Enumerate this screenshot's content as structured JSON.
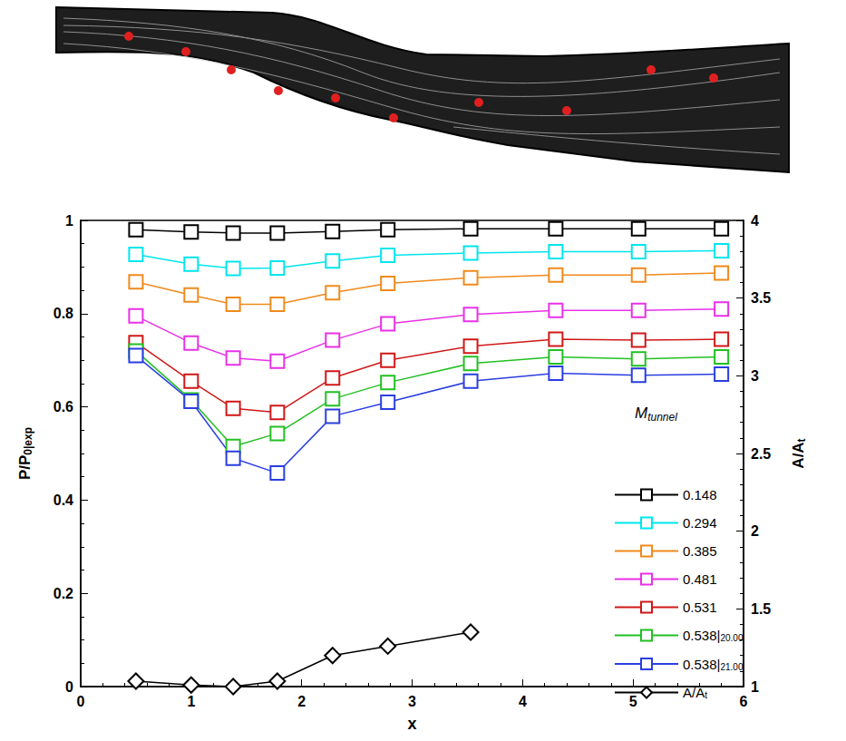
{
  "chart_data": {
    "type": "line",
    "xlabel": "x",
    "ylabel": {
      "text": "P/P",
      "sub": "0|exp"
    },
    "y2label": {
      "text": "A/A",
      "sub": "t"
    },
    "legend_title": {
      "text": "M",
      "sub": "tunnel"
    },
    "legend": "lower right",
    "grid": false,
    "xlim": [
      0,
      6
    ],
    "xticks": [
      0,
      1,
      2,
      3,
      4,
      5,
      6
    ],
    "ylim": [
      0,
      1
    ],
    "yticks": [
      0,
      0.2,
      0.4,
      0.6,
      0.8,
      1
    ],
    "y2lim": [
      1,
      4
    ],
    "y2ticks": [
      1,
      1.5,
      2,
      2.5,
      3,
      3.5,
      4
    ],
    "series": [
      {
        "name": "0.148",
        "color": "#000000",
        "marker": "square",
        "x": [
          0.5,
          1.0,
          1.38,
          1.78,
          2.28,
          2.78,
          3.53,
          4.3,
          5.05,
          5.8
        ],
        "values": [
          0.98,
          0.975,
          0.973,
          0.973,
          0.976,
          0.98,
          0.982,
          0.982,
          0.982,
          0.982
        ]
      },
      {
        "name": "0.294",
        "color": "#00e5ee",
        "marker": "square",
        "x": [
          0.5,
          1.0,
          1.38,
          1.78,
          2.28,
          2.78,
          3.53,
          4.3,
          5.05,
          5.8
        ],
        "values": [
          0.927,
          0.906,
          0.897,
          0.898,
          0.913,
          0.925,
          0.93,
          0.933,
          0.933,
          0.935
        ]
      },
      {
        "name": "0.385",
        "color": "#f08a1c",
        "marker": "square",
        "x": [
          0.5,
          1.0,
          1.38,
          1.78,
          2.28,
          2.78,
          3.53,
          4.3,
          5.05,
          5.8
        ],
        "values": [
          0.868,
          0.84,
          0.82,
          0.82,
          0.845,
          0.865,
          0.877,
          0.883,
          0.883,
          0.887
        ]
      },
      {
        "name": "0.481",
        "color": "#e830e8",
        "marker": "square",
        "x": [
          0.5,
          1.0,
          1.38,
          1.78,
          2.28,
          2.78,
          3.53,
          4.3,
          5.05,
          5.8
        ],
        "values": [
          0.795,
          0.737,
          0.705,
          0.698,
          0.743,
          0.778,
          0.798,
          0.807,
          0.807,
          0.81
        ]
      },
      {
        "name": "0.531",
        "color": "#d01818",
        "marker": "square",
        "x": [
          0.5,
          1.0,
          1.38,
          1.78,
          2.28,
          2.78,
          3.53,
          4.3,
          5.05,
          5.8
        ],
        "values": [
          0.738,
          0.655,
          0.597,
          0.588,
          0.662,
          0.7,
          0.73,
          0.745,
          0.743,
          0.745
        ]
      },
      {
        "name": "0.538|20.00",
        "color": "#22c022",
        "marker": "square",
        "x": [
          0.5,
          1.0,
          1.38,
          1.78,
          2.28,
          2.78,
          3.53,
          4.3,
          5.05,
          5.8
        ],
        "values": [
          0.72,
          0.615,
          0.515,
          0.543,
          0.617,
          0.652,
          0.693,
          0.707,
          0.703,
          0.707
        ]
      },
      {
        "name": "0.538|21.00",
        "color": "#2a3ee0",
        "marker": "square",
        "x": [
          0.5,
          1.0,
          1.38,
          1.78,
          2.28,
          2.78,
          3.53,
          4.3,
          5.05,
          5.8
        ],
        "values": [
          0.71,
          0.612,
          0.49,
          0.458,
          0.58,
          0.61,
          0.655,
          0.672,
          0.668,
          0.67
        ]
      },
      {
        "name": "A/At",
        "color": "#000000",
        "marker": "diamond",
        "axis": "y2",
        "x": [
          0.5,
          1.0,
          1.38,
          1.78,
          2.28,
          2.78,
          3.53
        ],
        "values": [
          1.035,
          1.01,
          1.0,
          1.035,
          1.2,
          1.26,
          1.35
        ]
      }
    ]
  }
}
